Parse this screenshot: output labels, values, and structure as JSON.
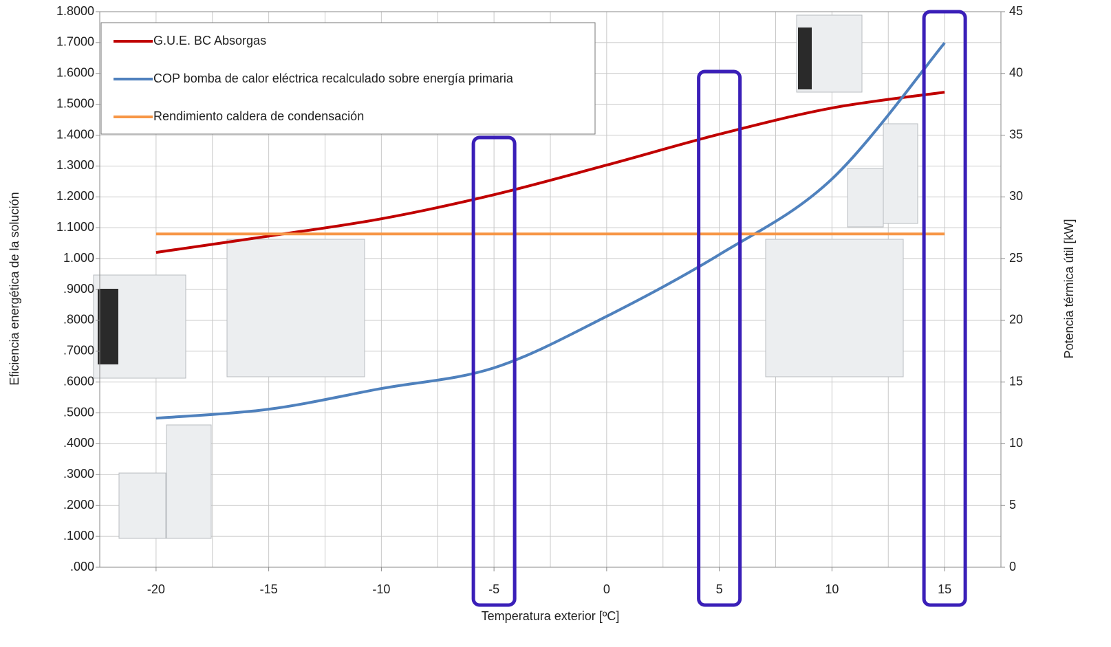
{
  "chart_data": {
    "type": "line",
    "x_label": "Temperatura exterior [ºC]",
    "y_label": "Eficiencia energética de la solución",
    "y2_label": "Potencia térmica útil [kW]",
    "x": [
      -20,
      -15,
      -10,
      -5,
      0,
      5,
      10,
      15
    ],
    "series": [
      {
        "name": "G.U.E. BC Absorgas",
        "color": "#c00000",
        "values": [
          1.02,
          1.073,
          1.129,
          1.207,
          1.303,
          1.403,
          1.488,
          1.539
        ]
      },
      {
        "name": "COP bomba de calor eléctrica recalculado sobre energía primaria",
        "color": "#4f81bd",
        "values": [
          0.483,
          0.512,
          0.579,
          0.646,
          0.813,
          1.013,
          1.258,
          1.699
        ]
      },
      {
        "name": "Rendimiento caldera de condensación",
        "color": "#f79646",
        "values": [
          1.08,
          1.08,
          1.08,
          1.08,
          1.08,
          1.08,
          1.08,
          1.08
        ]
      }
    ],
    "xlim": [
      -22.5,
      17.5
    ],
    "xticks": [
      -20,
      -15,
      -10,
      -5,
      0,
      5,
      10,
      15
    ],
    "xgrid": [
      -22.5,
      -20,
      -17.5,
      -15,
      -12.5,
      -10,
      -7.5,
      -5,
      -2.5,
      0,
      2.5,
      5,
      7.5,
      10,
      12.5,
      15,
      17.5
    ],
    "ylim": [
      0,
      1.8
    ],
    "yticks": [
      {
        "value": 0,
        "label": ".000"
      },
      {
        "value": 0.1,
        "label": ".1000"
      },
      {
        "value": 0.2,
        "label": ".2000"
      },
      {
        "value": 0.3,
        "label": ".3000"
      },
      {
        "value": 0.4,
        "label": ".4000"
      },
      {
        "value": 0.5,
        "label": ".5000"
      },
      {
        "value": 0.6,
        "label": ".6000"
      },
      {
        "value": 0.7,
        "label": ".7000"
      },
      {
        "value": 0.8,
        "label": ".8000"
      },
      {
        "value": 0.9,
        "label": ".9000"
      },
      {
        "value": 1.0,
        "label": "1.000"
      },
      {
        "value": 1.1,
        "label": "1.1000"
      },
      {
        "value": 1.2,
        "label": "1.2000"
      },
      {
        "value": 1.3,
        "label": "1.3000"
      },
      {
        "value": 1.4,
        "label": "1.4000"
      },
      {
        "value": 1.5,
        "label": "1.5000"
      },
      {
        "value": 1.6,
        "label": "1.6000"
      },
      {
        "value": 1.7,
        "label": "1.7000"
      },
      {
        "value": 1.8,
        "label": "1.8000"
      }
    ],
    "y2lim": [
      0,
      45
    ],
    "y2ticks": [
      0,
      5,
      10,
      15,
      20,
      25,
      30,
      35,
      40,
      45
    ],
    "highlight_x": [
      -5,
      5,
      15
    ],
    "highlight_color": "#3a1fb8",
    "grid": true,
    "legend": "upper left"
  }
}
